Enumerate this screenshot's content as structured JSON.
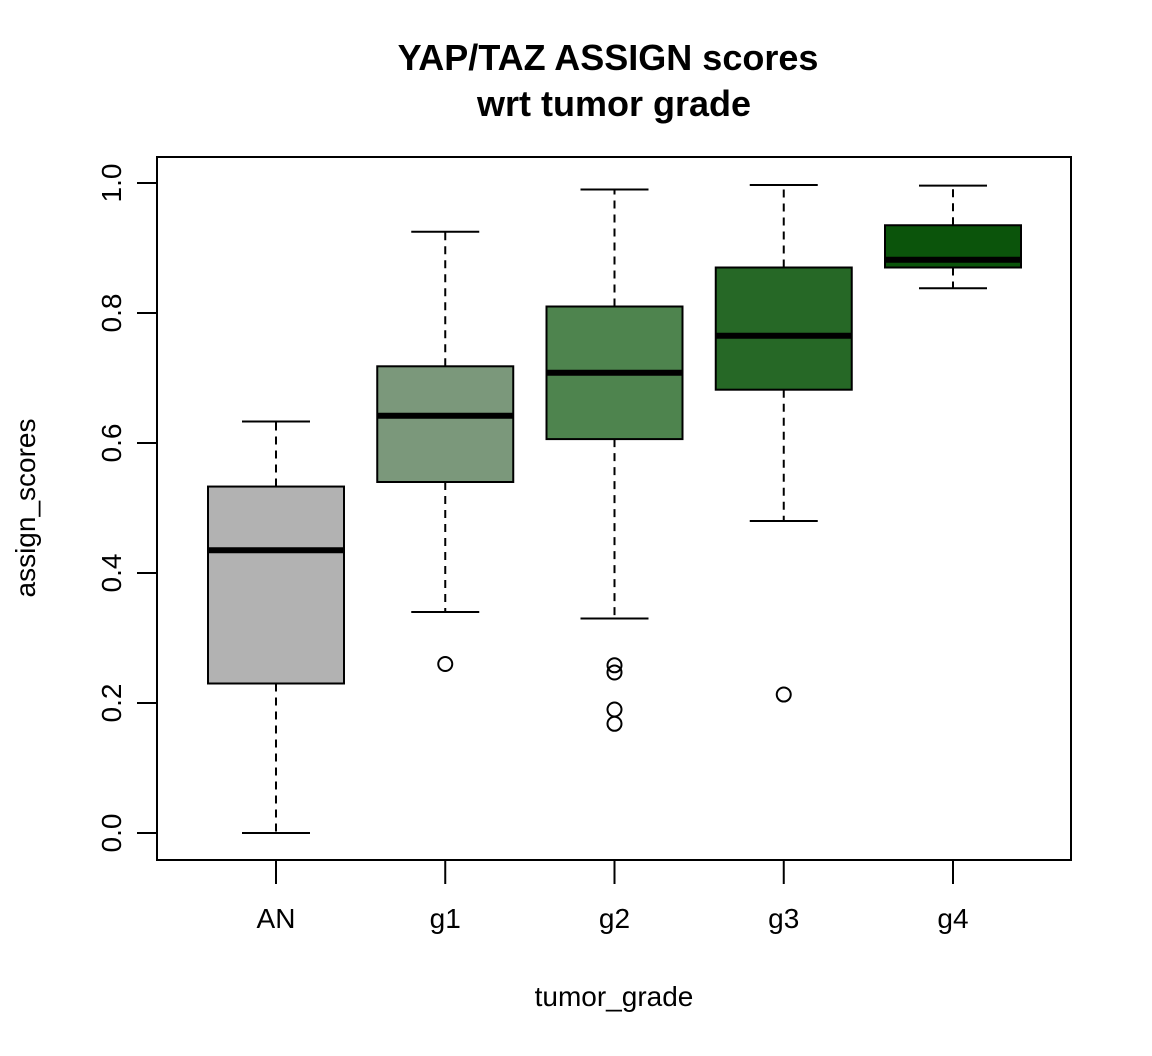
{
  "chart_data": {
    "type": "boxplot",
    "title": [
      "YAP/TAZ ASSIGN scores",
      "wrt tumor grade"
    ],
    "xlabel": "tumor_grade",
    "ylabel": "assign_scores",
    "ylim": [
      -0.04,
      1.04
    ],
    "yticks": [
      "0.0",
      "0.2",
      "0.4",
      "0.6",
      "0.8",
      "1.0"
    ],
    "categories": [
      "AN",
      "g1",
      "g2",
      "g3",
      "g4"
    ],
    "boxes": [
      {
        "name": "AN",
        "whisker_low": 0.0,
        "q1": 0.23,
        "median": 0.435,
        "q3": 0.533,
        "whisker_high": 0.633,
        "outliers": [],
        "color": "#b2b2b2"
      },
      {
        "name": "g1",
        "whisker_low": 0.34,
        "q1": 0.54,
        "median": 0.642,
        "q3": 0.718,
        "whisker_high": 0.925,
        "outliers": [
          0.26
        ],
        "color": "#7b987b"
      },
      {
        "name": "g2",
        "whisker_low": 0.33,
        "q1": 0.606,
        "median": 0.708,
        "q3": 0.81,
        "whisker_high": 0.99,
        "outliers": [
          0.258,
          0.247,
          0.19,
          0.168
        ],
        "color": "#4e844e"
      },
      {
        "name": "g3",
        "whisker_low": 0.48,
        "q1": 0.682,
        "median": 0.765,
        "q3": 0.87,
        "whisker_high": 0.997,
        "outliers": [
          0.213
        ],
        "color": "#266826"
      },
      {
        "name": "g4",
        "whisker_low": 0.838,
        "q1": 0.87,
        "median": 0.882,
        "q3": 0.935,
        "whisker_high": 0.996,
        "outliers": [],
        "color": "#0b540b"
      }
    ],
    "grid": false,
    "legend": "none"
  }
}
